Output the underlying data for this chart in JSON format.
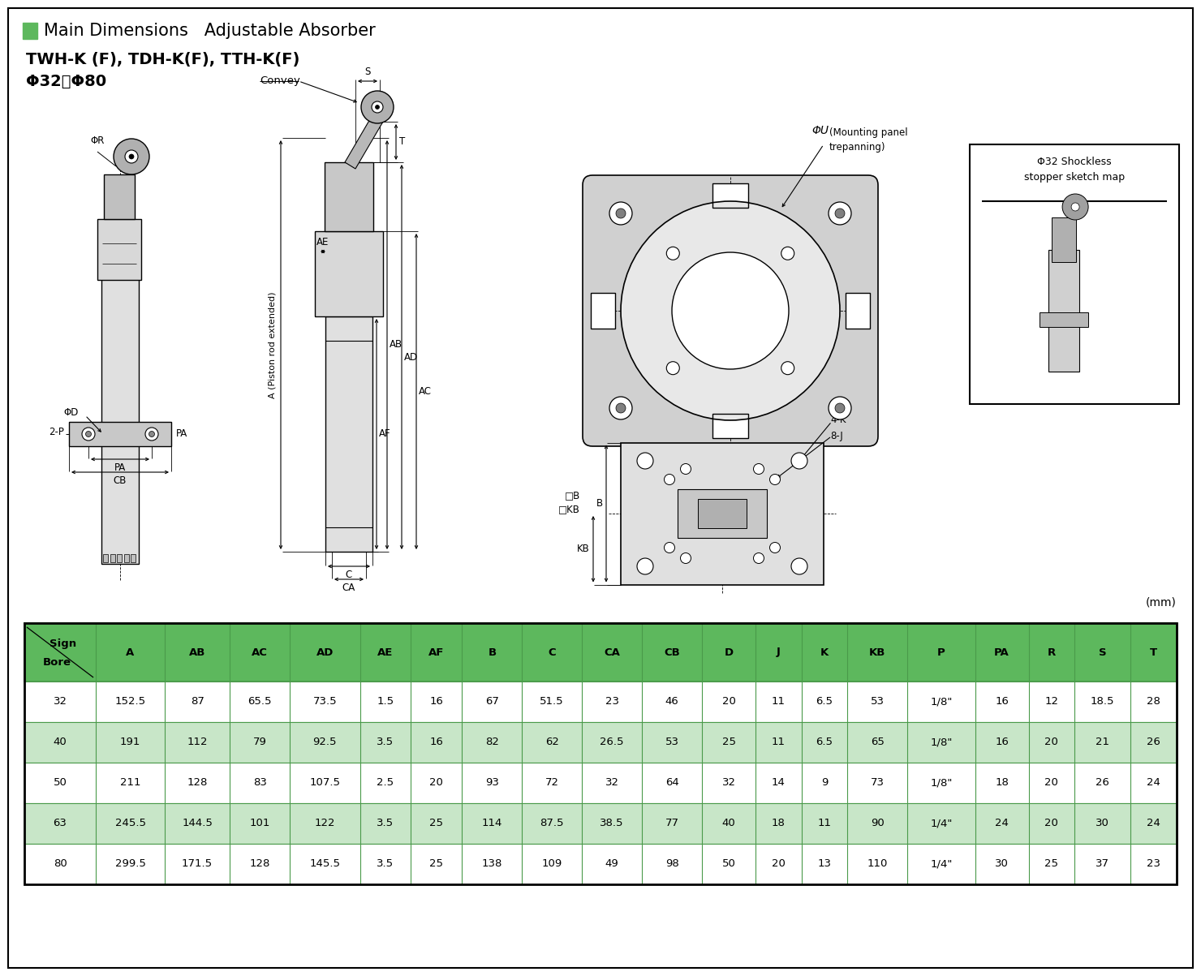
{
  "title_line1": "Main Dimensions   Adjustable Absorber",
  "title_line2": "TWH-K (F), TDH-K(F), TTH-K(F)",
  "title_line3": "Φ32～Φ80",
  "unit_label": "(mm)",
  "header_row": [
    "Sign\nBore",
    "A",
    "AB",
    "AC",
    "AD",
    "AE",
    "AF",
    "B",
    "C",
    "CA",
    "CB",
    "D",
    "J",
    "K",
    "KB",
    "P",
    "PA",
    "R",
    "S",
    "T"
  ],
  "data_rows": [
    [
      "32",
      "152.5",
      "87",
      "65.5",
      "73.5",
      "1.5",
      "16",
      "67",
      "51.5",
      "23",
      "46",
      "20",
      "11",
      "6.5",
      "53",
      "1/8\"",
      "16",
      "12",
      "18.5",
      "28"
    ],
    [
      "40",
      "191",
      "112",
      "79",
      "92.5",
      "3.5",
      "16",
      "82",
      "62",
      "26.5",
      "53",
      "25",
      "11",
      "6.5",
      "65",
      "1/8\"",
      "16",
      "20",
      "21",
      "26"
    ],
    [
      "50",
      "211",
      "128",
      "83",
      "107.5",
      "2.5",
      "20",
      "93",
      "72",
      "32",
      "64",
      "32",
      "14",
      "9",
      "73",
      "1/8\"",
      "18",
      "20",
      "26",
      "24"
    ],
    [
      "63",
      "245.5",
      "144.5",
      "101",
      "122",
      "3.5",
      "25",
      "114",
      "87.5",
      "38.5",
      "77",
      "40",
      "18",
      "11",
      "90",
      "1/4\"",
      "24",
      "20",
      "30",
      "24"
    ],
    [
      "80",
      "299.5",
      "171.5",
      "128",
      "145.5",
      "3.5",
      "25",
      "138",
      "109",
      "49",
      "98",
      "50",
      "20",
      "13",
      "110",
      "1/4\"",
      "30",
      "25",
      "37",
      "23"
    ]
  ],
  "header_bg": "#5db85d",
  "row_bg_even": "#ffffff",
  "row_bg_odd": "#c8e6c8",
  "border_color": "#4a9a4a",
  "outer_border": "#2d6e2d",
  "fig_width": 14.8,
  "fig_height": 12.03,
  "green_square": "#5db85d"
}
